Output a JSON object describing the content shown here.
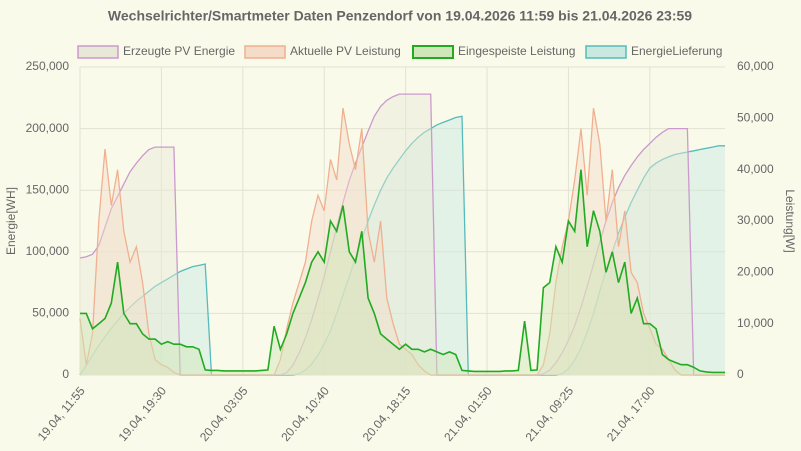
{
  "chart_data": {
    "type": "line",
    "title": "Wechselrichter/Smartmeter Daten Penzendorf von 19.04.2026 11:59 bis 21.04.2026 23:59",
    "y_label": "Energie[WH]",
    "y2_label": "Leistung[W]",
    "categories": [
      "19.04, 11:55",
      null,
      null,
      null,
      null,
      null,
      null,
      null,
      null,
      null,
      null,
      null,
      null,
      "19.04, 19:30",
      null,
      null,
      null,
      null,
      null,
      null,
      null,
      null,
      null,
      null,
      null,
      null,
      "20.04, 03:05",
      null,
      null,
      null,
      null,
      null,
      null,
      null,
      null,
      null,
      null,
      null,
      null,
      "20.04, 10:40",
      null,
      null,
      null,
      null,
      null,
      null,
      null,
      null,
      null,
      null,
      null,
      null,
      "20.04, 18:15",
      null,
      null,
      null,
      null,
      null,
      null,
      null,
      null,
      null,
      null,
      null,
      null,
      "21.04, 01:50",
      null,
      null,
      null,
      null,
      null,
      null,
      null,
      null,
      null,
      null,
      null,
      null,
      "21.04, 09:25",
      null,
      null,
      null,
      null,
      null,
      null,
      null,
      null,
      null,
      null,
      null,
      null,
      "21.04, 17:00",
      null,
      null,
      null,
      null,
      null,
      null,
      null,
      null,
      null,
      null,
      null,
      null
    ],
    "ylim": [
      0,
      250000
    ],
    "yticks": [
      0,
      {
        "value": 50000,
        "label": "50,000"
      },
      {
        "value": 100000,
        "label": "100,000"
      },
      {
        "value": 150000,
        "label": "150,000"
      },
      {
        "value": 200000,
        "label": "200,000"
      },
      {
        "value": 250000,
        "label": "250,000"
      }
    ],
    "y2lim": [
      0,
      60000
    ],
    "y2ticks": [
      0,
      {
        "value": 10000,
        "label": "10,000"
      },
      {
        "value": 20000,
        "label": "20,000"
      },
      {
        "value": 30000,
        "label": "30,000"
      },
      {
        "value": 40000,
        "label": "40,000"
      },
      {
        "value": 50000,
        "label": "50,000"
      },
      {
        "value": 60000,
        "label": "60,000"
      }
    ],
    "grid": true,
    "legend": "top",
    "series": [
      {
        "name": "Erzeugte PV Energie",
        "color": "#cc99cc",
        "fill": "#e8e8d8",
        "values": [
          95000,
          96000,
          98000,
          105000,
          120000,
          135000,
          145000,
          155000,
          165000,
          172000,
          178000,
          183000,
          185000,
          185000,
          185000,
          185000,
          0,
          0,
          0,
          0,
          0,
          0,
          0,
          0,
          0,
          0,
          0,
          0,
          0,
          0,
          0,
          0,
          0,
          2000,
          8000,
          18000,
          30000,
          45000,
          62000,
          80000,
          100000,
          120000,
          140000,
          158000,
          172000,
          185000,
          198000,
          210000,
          218000,
          223000,
          226000,
          228000,
          228000,
          228000,
          228000,
          228000,
          228000,
          0,
          0,
          0,
          0,
          0,
          0,
          0,
          0,
          0,
          0,
          0,
          0,
          0,
          0,
          0,
          0,
          0,
          1000,
          4000,
          10000,
          18000,
          28000,
          40000,
          55000,
          72000,
          90000,
          108000,
          125000,
          140000,
          152000,
          162000,
          170000,
          177000,
          183000,
          188000,
          193000,
          197000,
          200000,
          200000,
          200000,
          200000,
          0,
          0,
          0,
          0,
          0,
          0
        ]
      },
      {
        "name": "Aktuelle PV Leistung",
        "color": "#f0b090",
        "fill": "#f5dcc8",
        "axis": "y2",
        "values": [
          11000,
          2000,
          8000,
          30000,
          44000,
          33000,
          40000,
          28000,
          22000,
          25000,
          18000,
          8000,
          3000,
          2000,
          1500,
          500,
          0,
          0,
          0,
          0,
          0,
          0,
          0,
          0,
          0,
          0,
          0,
          0,
          0,
          0,
          0,
          0,
          3000,
          9000,
          14000,
          18000,
          22000,
          30000,
          35000,
          32000,
          42000,
          38000,
          52000,
          45000,
          40000,
          48000,
          28000,
          22000,
          30000,
          15000,
          10000,
          6000,
          5000,
          4000,
          2000,
          800,
          0,
          0,
          0,
          0,
          0,
          0,
          0,
          0,
          0,
          0,
          0,
          0,
          0,
          0,
          0,
          0,
          0,
          0,
          2000,
          8000,
          18000,
          25000,
          30000,
          38000,
          48000,
          35000,
          52000,
          45000,
          30000,
          40000,
          25000,
          32000,
          20000,
          18000,
          12000,
          9000,
          6000,
          5000,
          3000,
          1000,
          0,
          0,
          0,
          0,
          0,
          0,
          0,
          0
        ]
      },
      {
        "name": "Eingespeiste Leistung",
        "color": "#22aa22",
        "fill": "#cfe6b8",
        "axis": "y2",
        "values": [
          12000,
          12000,
          9000,
          10000,
          11000,
          14000,
          22000,
          12000,
          10000,
          10000,
          8000,
          7000,
          7000,
          6000,
          6500,
          6000,
          6000,
          5500,
          5500,
          5000,
          1000,
          900,
          900,
          800,
          800,
          800,
          800,
          800,
          800,
          900,
          1000,
          9500,
          5000,
          8000,
          12000,
          15000,
          18000,
          22000,
          24000,
          22000,
          30000,
          28000,
          33000,
          24000,
          22000,
          28000,
          15000,
          12000,
          8000,
          7000,
          6000,
          5000,
          6000,
          5000,
          5000,
          4500,
          5000,
          4500,
          4000,
          4500,
          4000,
          900,
          800,
          700,
          700,
          700,
          700,
          700,
          800,
          800,
          900,
          10500,
          900,
          1000,
          17000,
          18000,
          25000,
          22000,
          30000,
          28000,
          40000,
          25000,
          32000,
          28000,
          20000,
          24000,
          18000,
          22000,
          12000,
          15000,
          10000,
          10000,
          9000,
          4000,
          3000,
          2500,
          2000,
          2000,
          1500,
          800,
          600,
          500,
          500,
          500
        ]
      },
      {
        "name": "EnergieLieferung",
        "color": "#55bbbb",
        "fill": "#c8e8e0",
        "values": [
          0,
          8000,
          16000,
          24000,
          31000,
          38000,
          44000,
          50000,
          55000,
          60000,
          64000,
          68000,
          72000,
          75000,
          78000,
          81000,
          84000,
          86000,
          88000,
          89000,
          90000,
          0,
          0,
          0,
          0,
          0,
          0,
          0,
          0,
          0,
          0,
          0,
          0,
          0,
          0,
          1000,
          4000,
          9000,
          16000,
          25000,
          36000,
          50000,
          65000,
          80000,
          95000,
          110000,
          125000,
          138000,
          150000,
          160000,
          168000,
          175000,
          182000,
          188000,
          193000,
          197000,
          200000,
          203000,
          205000,
          207000,
          209000,
          210000,
          0,
          0,
          0,
          0,
          0,
          0,
          0,
          0,
          0,
          0,
          0,
          0,
          0,
          0,
          0,
          1000,
          5000,
          12000,
          22000,
          35000,
          50000,
          68000,
          85000,
          100000,
          115000,
          128000,
          140000,
          150000,
          160000,
          168000,
          172000,
          175000,
          177000,
          179000,
          180000,
          181000,
          182000,
          183000,
          184000,
          185000,
          186000,
          186000
        ]
      }
    ]
  }
}
